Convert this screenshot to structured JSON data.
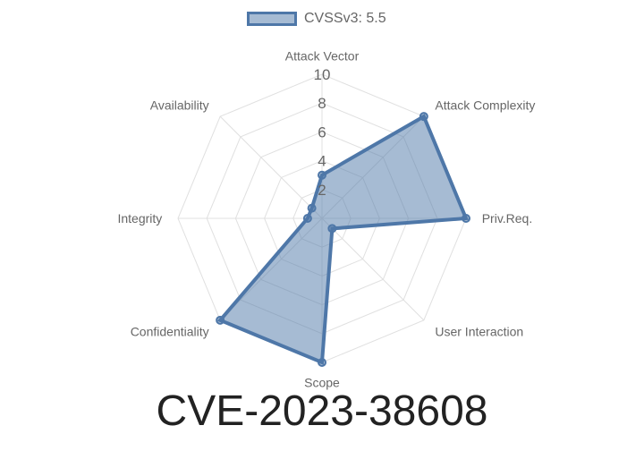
{
  "chart_data": {
    "type": "radar",
    "title": "CVE-2023-38608",
    "categories": [
      "Attack Vector",
      "Attack Complexity",
      "Priv.Req.",
      "User Interaction",
      "Scope",
      "Confidentiality",
      "Integrity",
      "Availability"
    ],
    "series": [
      {
        "name": "CVSSv3: 5.5",
        "values": [
          3,
          10,
          10,
          1,
          10,
          10,
          1,
          1
        ]
      }
    ],
    "rlim": [
      0,
      10
    ],
    "ticks": [
      "2",
      "4",
      "6",
      "8",
      "10"
    ],
    "grid": true,
    "legend": "top",
    "colors": {
      "stroke": "#4e77a8",
      "fill": "rgba(78,119,168,0.5)",
      "grid": "#e0e0e0",
      "label": "#666666"
    }
  }
}
